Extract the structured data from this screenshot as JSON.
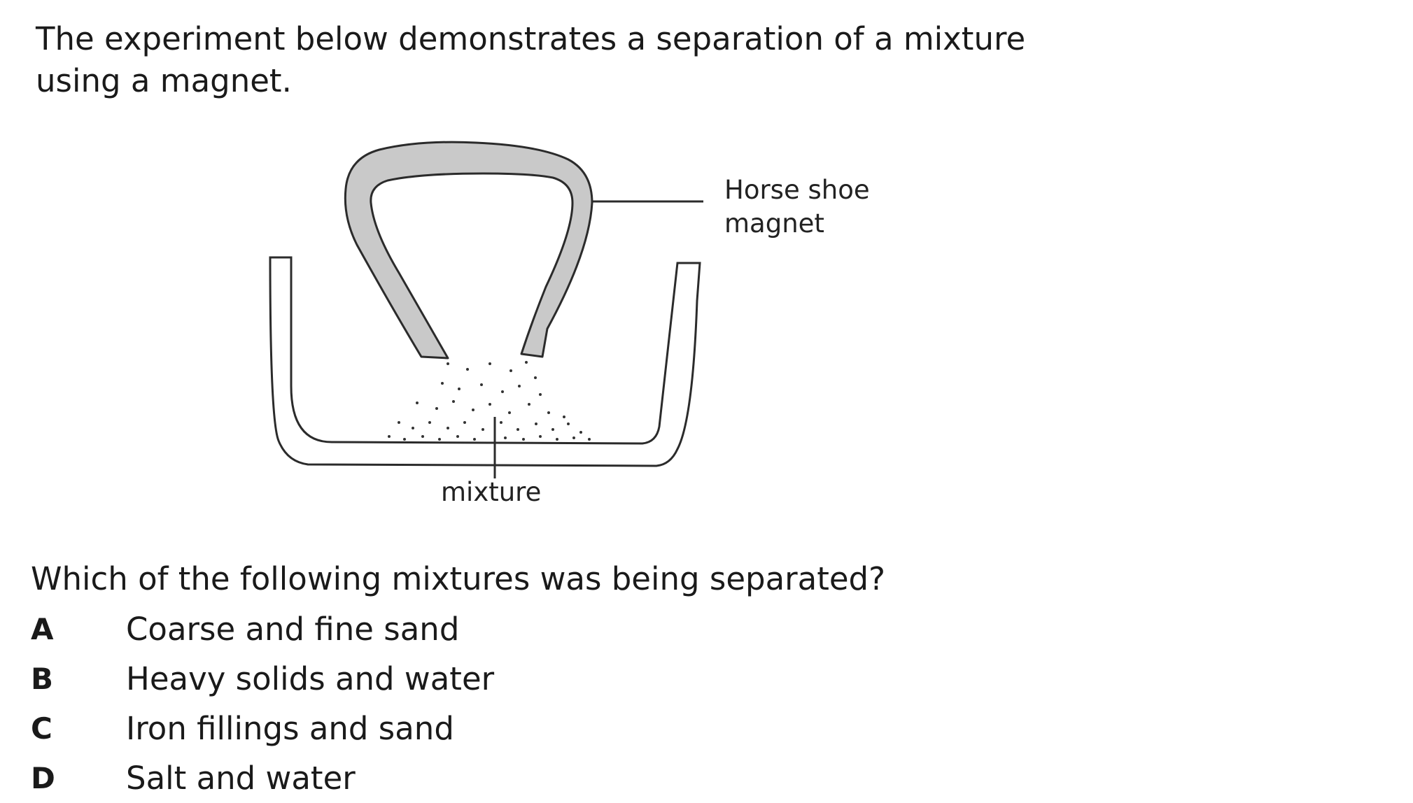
{
  "intro_text": "The experiment below demonstrates a separation of a mixture using a magnet.",
  "figure": {
    "magnet_label_line1": "Horse shoe",
    "magnet_label_line2": "magnet",
    "mixture_label": "mixture"
  },
  "question": "Which of the following mixtures was being separated?",
  "options": [
    {
      "letter": "A",
      "text": "Coarse and fine sand"
    },
    {
      "letter": "B",
      "text": "Heavy solids and water"
    },
    {
      "letter": "C",
      "text": "Iron fillings and sand"
    },
    {
      "letter": "D",
      "text": "Salt and water"
    }
  ]
}
